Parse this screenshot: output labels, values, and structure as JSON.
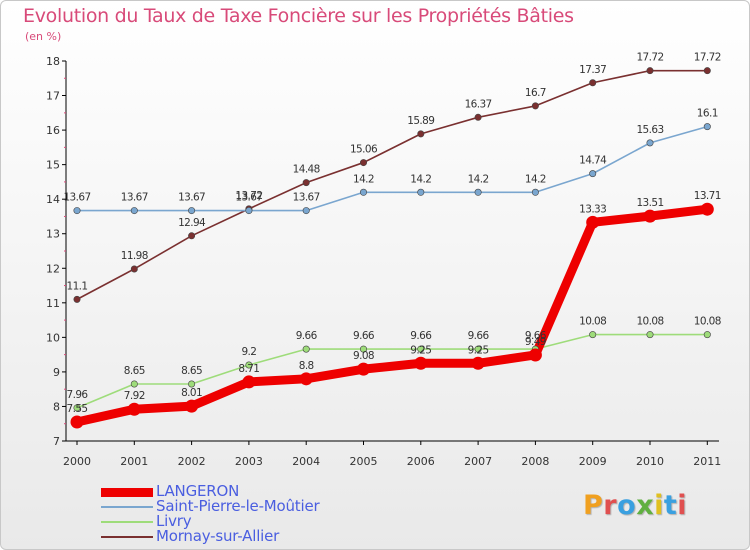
{
  "chart_data": {
    "type": "line",
    "title": "Evolution du Taux de Taxe Foncière sur les Propriétés Bâties",
    "subtitle": "(en %)",
    "x": [
      "2000",
      "2001",
      "2002",
      "2003",
      "2004",
      "2005",
      "2006",
      "2007",
      "2008",
      "2009",
      "2010",
      "2011"
    ],
    "ylim": [
      7,
      18
    ],
    "yticks": [
      "7",
      "8",
      "9",
      "10",
      "11",
      "12",
      "13",
      "14",
      "15",
      "16",
      "17",
      "18"
    ],
    "grid": false,
    "legend_position": "bottom-left",
    "series": [
      {
        "name": "LANGERON",
        "color": "#ee0000",
        "values": [
          7.55,
          7.92,
          8.01,
          8.71,
          8.8,
          9.08,
          9.25,
          9.25,
          9.49,
          13.33,
          13.51,
          13.71
        ],
        "labels": [
          "7.55",
          "7.92",
          "8.01",
          "8.71",
          "8.8",
          "9.08",
          "9.25",
          "9.25",
          "9.49",
          "13.33",
          "13.51",
          "13.71"
        ]
      },
      {
        "name": "Saint-Pierre-le-Moûtier",
        "color": "#7aa6cf",
        "values": [
          13.67,
          13.67,
          13.67,
          13.67,
          13.67,
          14.2,
          14.2,
          14.2,
          14.2,
          14.74,
          15.63,
          16.1
        ],
        "labels": [
          "13.67",
          "13.67",
          "13.67",
          "13.67",
          "13.67",
          "14.2",
          "14.2",
          "14.2",
          "14.2",
          "14.74",
          "15.63",
          "16.1"
        ]
      },
      {
        "name": "Livry",
        "color": "#9edc7a",
        "values": [
          7.96,
          8.65,
          8.65,
          9.2,
          9.66,
          9.66,
          9.66,
          9.66,
          9.66,
          10.08,
          10.08,
          10.08
        ],
        "labels": [
          "7.96",
          "8.65",
          "8.65",
          "9.2",
          "9.66",
          "9.66",
          "9.66",
          "9.66",
          "9.66",
          "10.08",
          "10.08",
          "10.08"
        ]
      },
      {
        "name": "Mornay-sur-Allier",
        "color": "#7a3030",
        "values": [
          11.1,
          11.98,
          12.94,
          13.72,
          14.48,
          15.06,
          15.89,
          16.37,
          16.7,
          17.37,
          17.72,
          17.72
        ],
        "labels": [
          "11.1",
          "11.98",
          "12.94",
          "13.72",
          "14.48",
          "15.06",
          "15.89",
          "16.37",
          "16.7",
          "17.37",
          "17.72",
          "17.72"
        ]
      }
    ]
  },
  "logo": {
    "text": "Proxiti",
    "colors": [
      "#f0a020",
      "#e05050",
      "#3aa0e0",
      "#60b040",
      "#e0c020",
      "#3aa0e0",
      "#e05050"
    ]
  }
}
